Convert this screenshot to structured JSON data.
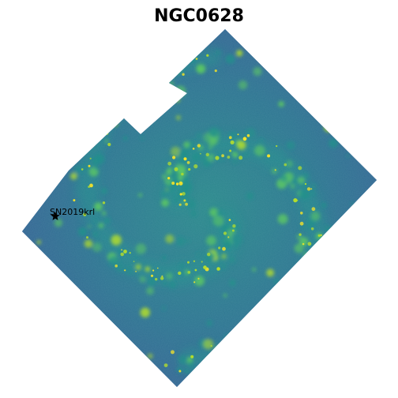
{
  "title": "NGC0628",
  "marker": {
    "label": "SN2019krl",
    "symbol": "star",
    "color": "#000000"
  },
  "colormap": {
    "name": "viridis",
    "low": "#3a5a9a",
    "mid": "#22908c",
    "high": "#b5de2b",
    "peak": "#fde725"
  }
}
